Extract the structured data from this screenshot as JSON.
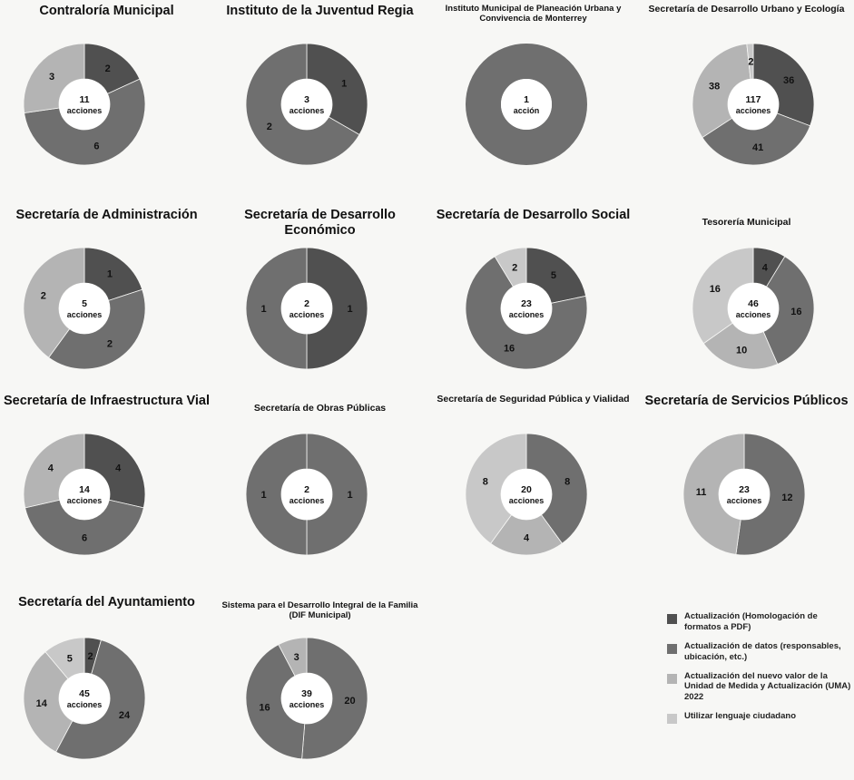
{
  "chart_data": [
    {
      "type": "pie",
      "title": "Contraloría Municipal",
      "center_count": "11",
      "center_unit": "acciones",
      "slices": [
        {
          "series": "s1",
          "value": 2
        },
        {
          "series": "s2",
          "value": 6
        },
        {
          "series": "s3",
          "value": 3
        }
      ]
    },
    {
      "type": "pie",
      "title": "Instituto de la Juventud Regia",
      "center_count": "3",
      "center_unit": "acciones",
      "slices": [
        {
          "series": "s1",
          "value": 1
        },
        {
          "series": "s2",
          "value": 2
        }
      ]
    },
    {
      "type": "pie",
      "title": "Instituto Municipal de Planeación Urbana y Convivencia de Monterrey",
      "center_count": "1",
      "center_unit": "acción",
      "slices": [
        {
          "series": "s2",
          "value": 1
        }
      ]
    },
    {
      "type": "pie",
      "title": "Secretaría de Desarrollo Urbano y Ecología",
      "center_count": "117",
      "center_unit": "acciones",
      "slices": [
        {
          "series": "s1",
          "value": 36
        },
        {
          "series": "s2",
          "value": 41
        },
        {
          "series": "s3",
          "value": 38
        },
        {
          "series": "s4",
          "value": 2
        }
      ]
    },
    {
      "type": "pie",
      "title": "Secretaría de Administración",
      "center_count": "5",
      "center_unit": "acciones",
      "slices": [
        {
          "series": "s1",
          "value": 1
        },
        {
          "series": "s2",
          "value": 2
        },
        {
          "series": "s3",
          "value": 2
        }
      ]
    },
    {
      "type": "pie",
      "title": "Secretaría de Desarrollo Económico",
      "center_count": "2",
      "center_unit": "acciones",
      "slices": [
        {
          "series": "s1",
          "value": 1
        },
        {
          "series": "s2",
          "value": 1
        }
      ]
    },
    {
      "type": "pie",
      "title": "Secretaría de Desarrollo Social",
      "center_count": "23",
      "center_unit": "acciones",
      "slices": [
        {
          "series": "s1",
          "value": 5
        },
        {
          "series": "s2",
          "value": 16
        },
        {
          "series": "s4",
          "value": 2
        }
      ]
    },
    {
      "type": "pie",
      "title": "Tesorería Municipal",
      "center_count": "46",
      "center_unit": "acciones",
      "slices": [
        {
          "series": "s1",
          "value": 4
        },
        {
          "series": "s2",
          "value": 16
        },
        {
          "series": "s3",
          "value": 10
        },
        {
          "series": "s4",
          "value": 16
        }
      ]
    },
    {
      "type": "pie",
      "title": "Secretaría de Infraestructura Vial",
      "center_count": "14",
      "center_unit": "acciones",
      "slices": [
        {
          "series": "s1",
          "value": 4
        },
        {
          "series": "s2",
          "value": 6
        },
        {
          "series": "s3",
          "value": 4
        }
      ]
    },
    {
      "type": "pie",
      "title": "Secretaría de Obras Públicas",
      "center_count": "2",
      "center_unit": "acciones",
      "slices": [
        {
          "series": "s2",
          "value": 1
        },
        {
          "series": "s2",
          "value": 1
        }
      ]
    },
    {
      "type": "pie",
      "title": "Secretaría de Seguridad Pública y Vialidad",
      "center_count": "20",
      "center_unit": "acciones",
      "slices": [
        {
          "series": "s2",
          "value": 8
        },
        {
          "series": "s3",
          "value": 4
        },
        {
          "series": "s4",
          "value": 8
        }
      ]
    },
    {
      "type": "pie",
      "title": "Secretaría de Servicios Públicos",
      "center_count": "23",
      "center_unit": "acciones",
      "slices": [
        {
          "series": "s2",
          "value": 12
        },
        {
          "series": "s3",
          "value": 11
        }
      ]
    },
    {
      "type": "pie",
      "title": "Secretaría del Ayuntamiento",
      "center_count": "45",
      "center_unit": "acciones",
      "slices": [
        {
          "series": "s1",
          "value": 2
        },
        {
          "series": "s2",
          "value": 24
        },
        {
          "series": "s3",
          "value": 14
        },
        {
          "series": "s4",
          "value": 5
        }
      ]
    },
    {
      "type": "pie",
      "title": "Sistema para el Desarrollo Integral de la Familia (DIF Municipal)",
      "center_count": "39",
      "center_unit": "acciones",
      "slices": [
        {
          "series": "s2",
          "value": 20
        },
        {
          "series": "s2",
          "value": 16
        },
        {
          "series": "s3",
          "value": 3
        }
      ]
    }
  ],
  "legend": [
    {
      "key": "s1",
      "label": "Actualización (Homologación de formatos a PDF)",
      "color": "#505050"
    },
    {
      "key": "s2",
      "label": "Actualización de datos (responsables, ubicación, etc.)",
      "color": "#6f6f6f"
    },
    {
      "key": "s3",
      "label": "Actualización del nuevo valor de la Unidad de Medida y Actualización (UMA) 2022",
      "color": "#b4b4b4"
    },
    {
      "key": "s4",
      "label": "Utilizar lenguaje ciudadano",
      "color": "#c8c8c8"
    }
  ]
}
